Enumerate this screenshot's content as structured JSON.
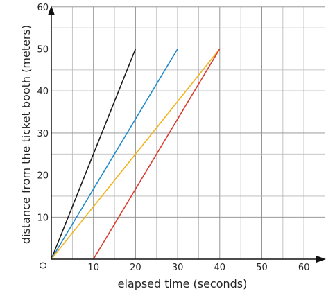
{
  "chart_data": {
    "type": "line",
    "xlabel": "elapsed time (seconds)",
    "ylabel": "distance from the ticket booth (meters)",
    "xlim": [
      0,
      65
    ],
    "ylim": [
      0,
      60
    ],
    "x_ticks": [
      10,
      20,
      30,
      40,
      50,
      60
    ],
    "y_ticks": [
      10,
      20,
      30,
      40,
      50,
      60
    ],
    "x_minor_step": 5,
    "y_minor_step": 5,
    "grid": true,
    "origin_label": "O",
    "series": [
      {
        "color": "#1a1a1a",
        "x": [
          0,
          20
        ],
        "y": [
          0,
          50
        ]
      },
      {
        "color": "#1f8ac9",
        "x": [
          0,
          30
        ],
        "y": [
          0,
          50
        ]
      },
      {
        "color": "#f2b21a",
        "x": [
          0,
          40
        ],
        "y": [
          0,
          50
        ]
      },
      {
        "color": "#d93a2b",
        "x": [
          10,
          40
        ],
        "y": [
          0,
          50
        ]
      }
    ]
  }
}
